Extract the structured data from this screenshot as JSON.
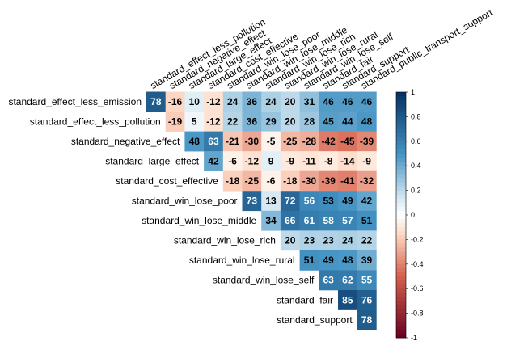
{
  "chart_data": {
    "type": "heatmap",
    "layout": "upper-triangle",
    "title": "",
    "variables": [
      "standard_effect_less_emission",
      "standard_effect_less_pollution",
      "standard_negative_effect",
      "standard_large_effect",
      "standard_cost_effective",
      "standard_win_lose_poor",
      "standard_win_lose_middle",
      "standard_win_lose_rich",
      "standard_win_lose_rural",
      "standard_win_lose_self",
      "standard_fair",
      "standard_support",
      "standard_public_transport_support"
    ],
    "row_labels": [
      "standard_effect_less_emission",
      "standard_effect_less_pollution",
      "standard_negative_effect",
      "standard_large_effect",
      "standard_cost_effective",
      "standard_win_lose_poor",
      "standard_win_lose_middle",
      "standard_win_lose_rich",
      "standard_win_lose_rural",
      "standard_win_lose_self",
      "standard_fair",
      "standard_support"
    ],
    "column_labels": [
      "standard_effect_less_pollution",
      "standard_negative_effect",
      "standard_large_effect",
      "standard_cost_effective",
      "standard_win_lose_poor",
      "standard_win_lose_middle",
      "standard_win_lose_rich",
      "standard_win_lose_rural",
      "standard_win_lose_self",
      "standard_fair",
      "standard_support",
      "standard_public_transport_support"
    ],
    "values": [
      [
        78,
        -16,
        10,
        -12,
        24,
        36,
        24,
        20,
        31,
        46,
        46,
        46
      ],
      [
        null,
        -19,
        5,
        -12,
        22,
        36,
        29,
        20,
        28,
        45,
        44,
        48
      ],
      [
        null,
        null,
        48,
        63,
        -21,
        -30,
        -5,
        -25,
        -28,
        -42,
        -45,
        -39
      ],
      [
        null,
        null,
        null,
        42,
        -6,
        -12,
        9,
        -9,
        -11,
        -8,
        -14,
        -9
      ],
      [
        null,
        null,
        null,
        null,
        -18,
        -25,
        -6,
        -18,
        -30,
        -39,
        -41,
        -32
      ],
      [
        null,
        null,
        null,
        null,
        null,
        73,
        13,
        72,
        56,
        53,
        49,
        42
      ],
      [
        null,
        null,
        null,
        null,
        null,
        null,
        34,
        66,
        61,
        58,
        57,
        51
      ],
      [
        null,
        null,
        null,
        null,
        null,
        null,
        null,
        20,
        23,
        23,
        24,
        22
      ],
      [
        null,
        null,
        null,
        null,
        null,
        null,
        null,
        null,
        51,
        49,
        48,
        39
      ],
      [
        null,
        null,
        null,
        null,
        null,
        null,
        null,
        null,
        null,
        63,
        62,
        55
      ],
      [
        null,
        null,
        null,
        null,
        null,
        null,
        null,
        null,
        null,
        null,
        85,
        76
      ],
      [
        null,
        null,
        null,
        null,
        null,
        null,
        null,
        null,
        null,
        null,
        null,
        78
      ]
    ],
    "color_scale": {
      "min": -1,
      "max": 1,
      "ticks": [
        "1",
        "0.8",
        "0.6",
        "0.4",
        "0.2",
        "0",
        "-0.2",
        "-0.4",
        "-0.6",
        "-0.8",
        "-1"
      ],
      "colors": {
        "neg_end": "#67001f",
        "neg_mid": "#d6604d",
        "neg_light": "#fddbc7",
        "zero": "#ffffff",
        "pos_light": "#d1e5f0",
        "pos_mid": "#4393c3",
        "pos_end": "#053061"
      }
    },
    "legend_position": "right"
  }
}
